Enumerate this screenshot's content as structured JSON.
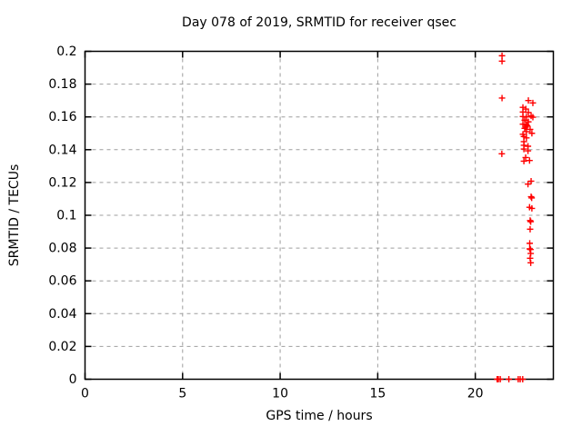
{
  "chart_data": {
    "type": "scatter",
    "title": "Day 078 of 2019, SRMTID for receiver qsec",
    "xlabel": "GPS time / hours",
    "ylabel": "SRMTID / TECUs",
    "xlim": [
      0,
      24
    ],
    "ylim": [
      0,
      0.2
    ],
    "xticks": [
      {
        "v": 0,
        "label": "0"
      },
      {
        "v": 5,
        "label": "5"
      },
      {
        "v": 10,
        "label": "10"
      },
      {
        "v": 15,
        "label": "15"
      },
      {
        "v": 20,
        "label": "20"
      }
    ],
    "yticks": [
      {
        "v": 0,
        "label": "0"
      },
      {
        "v": 0.02,
        "label": "0.02"
      },
      {
        "v": 0.04,
        "label": "0.04"
      },
      {
        "v": 0.06,
        "label": "0.06"
      },
      {
        "v": 0.08,
        "label": "0.08"
      },
      {
        "v": 0.1,
        "label": "0.1"
      },
      {
        "v": 0.12,
        "label": "0.12"
      },
      {
        "v": 0.14,
        "label": "0.14"
      },
      {
        "v": 0.16,
        "label": "0.16"
      },
      {
        "v": 0.18,
        "label": "0.18"
      },
      {
        "v": 0.2,
        "label": "0.2"
      }
    ],
    "grid": true,
    "legend": "none",
    "marker": "plus",
    "marker_color": "#ff0000",
    "grid_color": "#9e9e9e",
    "axis_color": "#000000",
    "background": "#ffffff",
    "series": [
      {
        "name": "SRMTID",
        "points": [
          [
            21.37,
            0.1973
          ],
          [
            21.37,
            0.194
          ],
          [
            21.37,
            0.1715
          ],
          [
            21.36,
            0.1375
          ],
          [
            22.72,
            0.17
          ],
          [
            22.95,
            0.1685
          ],
          [
            22.44,
            0.1658
          ],
          [
            22.59,
            0.1648
          ],
          [
            22.44,
            0.163
          ],
          [
            22.72,
            0.1627
          ],
          [
            22.86,
            0.1606
          ],
          [
            22.44,
            0.1602
          ],
          [
            22.62,
            0.16
          ],
          [
            22.95,
            0.1598
          ],
          [
            22.53,
            0.158
          ],
          [
            22.72,
            0.157
          ],
          [
            22.44,
            0.1556
          ],
          [
            22.62,
            0.1551
          ],
          [
            22.66,
            0.1545
          ],
          [
            22.58,
            0.1538
          ],
          [
            22.53,
            0.153
          ],
          [
            22.81,
            0.1524
          ],
          [
            22.62,
            0.151
          ],
          [
            22.9,
            0.15
          ],
          [
            22.44,
            0.1494
          ],
          [
            22.49,
            0.148
          ],
          [
            22.62,
            0.1472
          ],
          [
            22.49,
            0.1449
          ],
          [
            22.49,
            0.1427
          ],
          [
            22.7,
            0.1421
          ],
          [
            22.49,
            0.1404
          ],
          [
            22.7,
            0.1393
          ],
          [
            22.58,
            0.1352
          ],
          [
            22.78,
            0.1334
          ],
          [
            22.49,
            0.133
          ],
          [
            22.86,
            0.1208
          ],
          [
            22.7,
            0.119
          ],
          [
            22.86,
            0.1113
          ],
          [
            22.89,
            0.1106
          ],
          [
            22.78,
            0.1049
          ],
          [
            22.9,
            0.1042
          ],
          [
            22.81,
            0.0968
          ],
          [
            22.84,
            0.0961
          ],
          [
            22.81,
            0.0915
          ],
          [
            22.79,
            0.0829
          ],
          [
            22.79,
            0.0795
          ],
          [
            22.83,
            0.0791
          ],
          [
            22.84,
            0.0767
          ],
          [
            22.81,
            0.0738
          ],
          [
            22.84,
            0.071
          ],
          [
            21.12,
            0
          ],
          [
            21.18,
            0
          ],
          [
            21.28,
            0
          ],
          [
            21.72,
            0
          ],
          [
            22.2,
            0
          ],
          [
            22.3,
            0
          ],
          [
            22.43,
            0
          ]
        ]
      }
    ]
  }
}
